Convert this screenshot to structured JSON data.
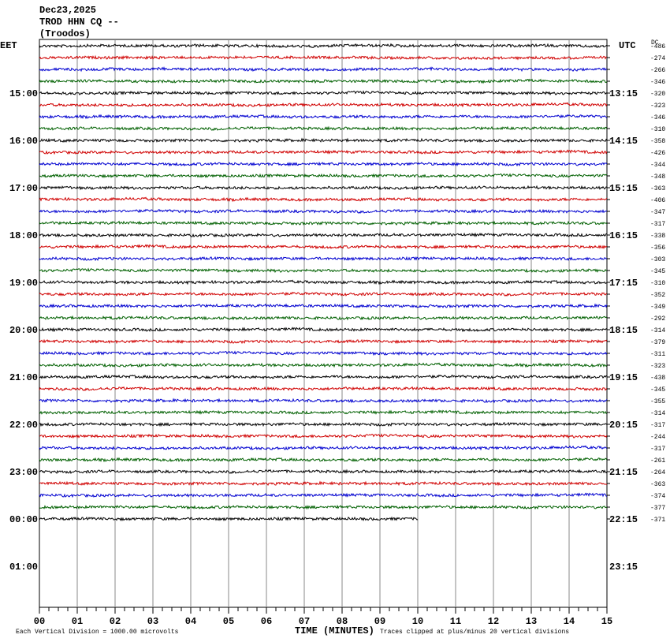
{
  "header": {
    "date": "Dec23,2025",
    "station": "TROD HHN CQ --",
    "location": "(Troodos)"
  },
  "left_axis": {
    "title": "EET",
    "labels": [
      "15:00",
      "16:00",
      "17:00",
      "18:00",
      "19:00",
      "20:00",
      "21:00",
      "22:00",
      "23:00",
      "00:00",
      "01:00"
    ]
  },
  "right_axis": {
    "title": "UTC",
    "labels": [
      "13:15",
      "14:15",
      "15:15",
      "16:15",
      "17:15",
      "18:15",
      "19:15",
      "20:15",
      "21:15",
      "22:15",
      "23:15"
    ]
  },
  "dc": {
    "title": "DC",
    "values": [
      -486,
      -274,
      -266,
      -346,
      -320,
      -323,
      -346,
      -310,
      -358,
      -426,
      -344,
      -348,
      -363,
      -406,
      -347,
      -317,
      -338,
      -356,
      -303,
      -345,
      -310,
      -352,
      -349,
      -292,
      -314,
      -379,
      -311,
      -323,
      -438,
      -345,
      -355,
      -314,
      -317,
      -244,
      -317,
      -261,
      -264,
      -363,
      -374,
      -377,
      -371
    ]
  },
  "x_axis": {
    "title": "TIME (MINUTES)",
    "labels": [
      "00",
      "01",
      "02",
      "03",
      "04",
      "05",
      "06",
      "07",
      "08",
      "09",
      "10",
      "11",
      "12",
      "13",
      "14",
      "15"
    ]
  },
  "footer": {
    "scale": "Each Vertical Division = 1000.00 microvolts",
    "clip": "Traces clipped at plus/minus 20 vertical divisions"
  },
  "trace_colors": [
    "#000000",
    "#d00000",
    "#0000d0",
    "#006000"
  ]
}
